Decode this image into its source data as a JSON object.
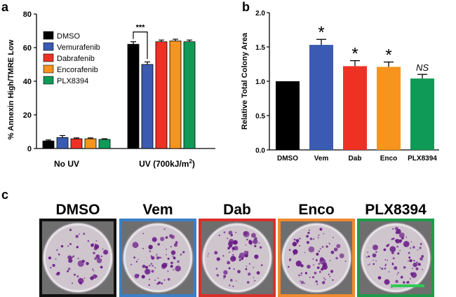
{
  "colors": {
    "dmso": "#000000",
    "vemurafenib": "#3a5bb1",
    "dabrafenib": "#ef3124",
    "encorafenib": "#f7941d",
    "plx8394": "#0f9b57",
    "plate_bg": "#cfc5cd",
    "colony": "#6a1a88",
    "scale_bar": "#2ecc55"
  },
  "panels": {
    "a": {
      "label": "a"
    },
    "b": {
      "label": "b"
    },
    "c": {
      "label": "c"
    }
  },
  "chart_data": [
    {
      "id": "a",
      "type": "bar",
      "ylabel": "% Annexin High/TMRE Low",
      "ylim": [
        0,
        80
      ],
      "yticks": [
        0,
        20,
        40,
        60,
        80
      ],
      "groups": [
        {
          "label": "No UV",
          "label_suffix": ""
        },
        {
          "label": "UV (700kJ/m",
          "label_sup": "2",
          "label_suffix": ")"
        }
      ],
      "legend_position": "top-left",
      "series": [
        {
          "name": "DMSO",
          "color": "#000000",
          "values": [
            4.5,
            62
          ],
          "errors": [
            0.6,
            1.5
          ]
        },
        {
          "name": "Vemurafenib",
          "color": "#3a5bb1",
          "values": [
            6.5,
            50
          ],
          "errors": [
            1.2,
            1.5
          ]
        },
        {
          "name": "Dabrafenib",
          "color": "#ef3124",
          "values": [
            5.8,
            63.5
          ],
          "errors": [
            0.5,
            1.0
          ]
        },
        {
          "name": "Encorafenib",
          "color": "#f7941d",
          "values": [
            5.8,
            64
          ],
          "errors": [
            0.5,
            1.0
          ]
        },
        {
          "name": "PLX8394",
          "color": "#0f9b57",
          "values": [
            5.4,
            63.5
          ],
          "errors": [
            0.4,
            1.0
          ]
        }
      ],
      "annotations": [
        {
          "text": "***",
          "between": [
            "DMSO",
            "Vemurafenib"
          ],
          "group": 1
        }
      ]
    },
    {
      "id": "b",
      "type": "bar",
      "ylabel": "Relative Total Colony Area",
      "ylim": [
        0,
        2.0
      ],
      "yticks": [
        "0.0",
        "0.5",
        "1.0",
        "1.5",
        "2.0"
      ],
      "categories": [
        "DMSO",
        "Vem",
        "Dab",
        "Enco",
        "PLX8394"
      ],
      "values": [
        1.0,
        1.53,
        1.22,
        1.21,
        1.04
      ],
      "errors": [
        0,
        0.08,
        0.08,
        0.07,
        0.06
      ],
      "colors": [
        "#000000",
        "#3a5bb1",
        "#ef3124",
        "#f7941d",
        "#0f9b57"
      ],
      "significance": [
        "",
        "*",
        "*",
        "*",
        "NS"
      ]
    }
  ],
  "plates": [
    {
      "label": "DMSO",
      "frame_color": "#111111",
      "scale_bar": false
    },
    {
      "label": "Vem",
      "frame_color": "#3a7fc7",
      "scale_bar": false
    },
    {
      "label": "Dab",
      "frame_color": "#d9302a",
      "scale_bar": false
    },
    {
      "label": "Enco",
      "frame_color": "#ef8a2f",
      "scale_bar": false
    },
    {
      "label": "PLX8394",
      "frame_color": "#1e9b4a",
      "scale_bar": true
    }
  ]
}
